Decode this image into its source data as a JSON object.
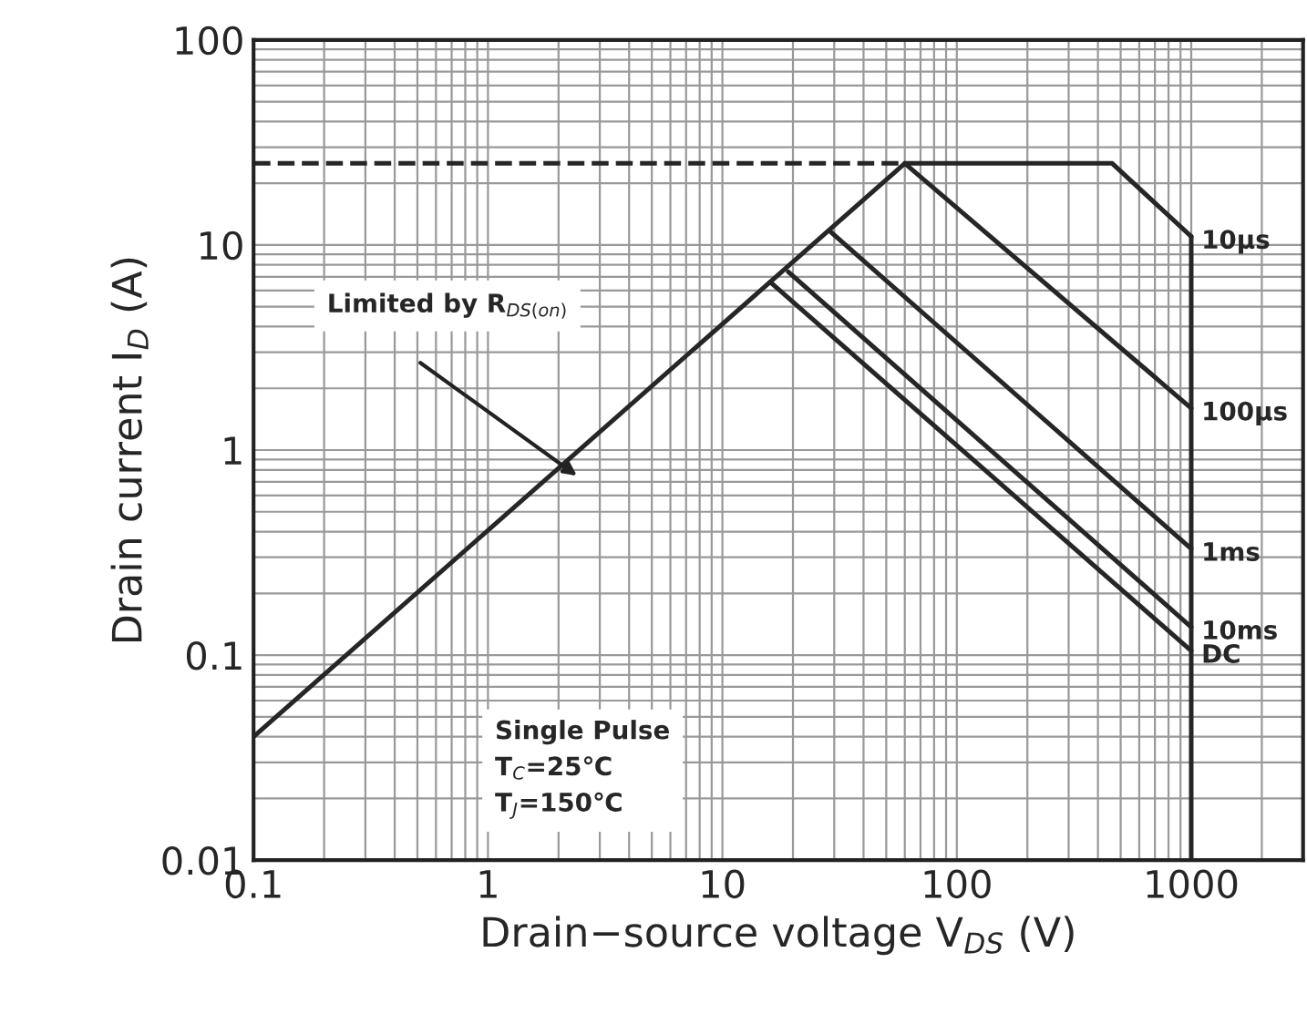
{
  "chart_data": {
    "type": "line",
    "xlabel": "Drain−source voltage V$_{DS}$ (V)",
    "ylabel": "Drain current I$_{D}$ (A)",
    "log": "xy",
    "xlim": [
      0.1,
      3000
    ],
    "ylim": [
      0.01,
      100
    ],
    "xticks": [
      0.1,
      1,
      10,
      100,
      1000
    ],
    "yticks": [
      0.01,
      0.1,
      1,
      10,
      100
    ],
    "grid": true,
    "marker": "none",
    "series": [
      {
        "color": "#262626",
        "x": [
          0.1,
          60
        ],
        "values": [
          0.04,
          25
        ]
      },
      {
        "color": "#262626",
        "line_style": "dashed",
        "x": [
          0.1,
          60
        ],
        "values": [
          25,
          25
        ]
      },
      {
        "name": "10µs",
        "color": "#262626",
        "x": [
          60,
          460,
          1000
        ],
        "values": [
          25,
          25,
          11
        ]
      },
      {
        "name": "100µs",
        "color": "#262626",
        "x": [
          60,
          1000
        ],
        "values": [
          25,
          1.6
        ]
      },
      {
        "name": "1ms",
        "color": "#262626",
        "x": [
          28.7,
          1000
        ],
        "values": [
          11.7,
          0.33
        ]
      },
      {
        "name": "10ms",
        "color": "#262626",
        "x": [
          19.1,
          1000
        ],
        "values": [
          7.4,
          0.137
        ]
      },
      {
        "name": "DC",
        "color": "#262626",
        "x": [
          16,
          1000
        ],
        "values": [
          6.6,
          0.105
        ]
      },
      {
        "color": "#262626",
        "x": [
          1000,
          1000
        ],
        "values": [
          11,
          0.01
        ]
      }
    ],
    "annotations": [
      "Limited by R$_{DS(on)}$",
      "Single Pulse\nT$_{C}$=25℃\nT$_{J}$=150℃"
    ]
  }
}
